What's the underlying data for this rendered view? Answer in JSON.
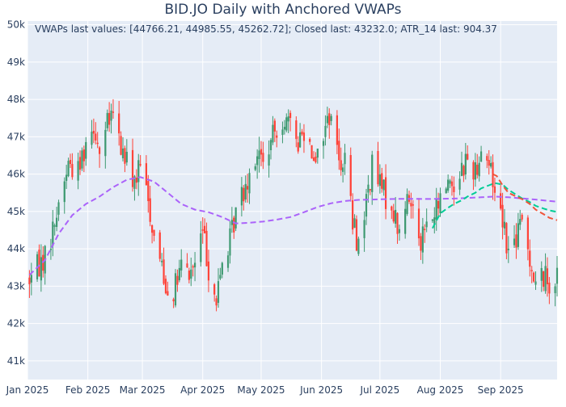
{
  "chart_data": {
    "type": "candlestick",
    "title": "BID.JO Daily with Anchored VWAPs",
    "annotation": "VWAPs last values: [44766.21, 44985.55, 45262.72]; Closed last: 43232.0; ATR_14 last: 904.37",
    "ylim": [
      40500,
      50100
    ],
    "yticks": [
      41000,
      42000,
      43000,
      44000,
      45000,
      46000,
      47000,
      48000,
      49000,
      50000
    ],
    "ytick_labels": [
      "41k",
      "42k",
      "43k",
      "44k",
      "45k",
      "46k",
      "47k",
      "48k",
      "49k",
      "50k"
    ],
    "xlim": [
      "2025-01-01",
      "2025-09-30"
    ],
    "xticks": [
      "2025-01-01",
      "2025-02-01",
      "2025-03-01",
      "2025-04-01",
      "2025-05-01",
      "2025-06-01",
      "2025-07-01",
      "2025-08-01",
      "2025-09-01"
    ],
    "xtick_labels": [
      "Jan 2025",
      "Feb 2025",
      "Mar 2025",
      "Apr 2025",
      "May 2025",
      "Jun 2025",
      "Jul 2025",
      "Aug 2025",
      "Sep 2025"
    ],
    "grid": true,
    "colors": {
      "increasing": "#3D9970",
      "decreasing": "#FF4136",
      "plot_bg": "#E5ECF6",
      "grid": "#ffffff",
      "vwap1": "#AB63FA",
      "vwap2": "#00CC96",
      "vwap3": "#EF553B",
      "text": "#2a3f5f"
    },
    "anchor_points": {
      "price": [
        [
          "2025-01-02",
          43200
        ],
        [
          "2025-01-06",
          43500
        ],
        [
          "2025-01-10",
          43800
        ],
        [
          "2025-01-14",
          44500
        ],
        [
          "2025-01-17",
          45200
        ],
        [
          "2025-01-22",
          46300
        ],
        [
          "2025-01-27",
          46100
        ],
        [
          "2025-01-31",
          46900
        ],
        [
          "2025-02-04",
          47400
        ],
        [
          "2025-02-07",
          46600
        ],
        [
          "2025-02-11",
          47300
        ],
        [
          "2025-02-14",
          47600
        ],
        [
          "2025-02-18",
          46700
        ],
        [
          "2025-02-21",
          46300
        ],
        [
          "2025-02-25",
          45800
        ],
        [
          "2025-02-28",
          46200
        ],
        [
          "2025-03-04",
          45300
        ],
        [
          "2025-03-07",
          44300
        ],
        [
          "2025-03-11",
          43600
        ],
        [
          "2025-03-14",
          42800
        ],
        [
          "2025-03-18",
          43000
        ],
        [
          "2025-03-21",
          43500
        ],
        [
          "2025-03-25",
          43300
        ],
        [
          "2025-03-28",
          43600
        ],
        [
          "2025-04-01",
          44500
        ],
        [
          "2025-04-04",
          43500
        ],
        [
          "2025-04-08",
          42600
        ],
        [
          "2025-04-11",
          43600
        ],
        [
          "2025-04-15",
          44200
        ],
        [
          "2025-04-18",
          45000
        ],
        [
          "2025-04-22",
          45600
        ],
        [
          "2025-04-25",
          46100
        ],
        [
          "2025-04-29",
          46600
        ],
        [
          "2025-05-02",
          46300
        ],
        [
          "2025-05-06",
          46800
        ],
        [
          "2025-05-09",
          47300
        ],
        [
          "2025-05-13",
          47500
        ],
        [
          "2025-05-16",
          47200
        ],
        [
          "2025-05-20",
          46900
        ],
        [
          "2025-05-23",
          47200
        ],
        [
          "2025-05-27",
          46700
        ],
        [
          "2025-05-30",
          46500
        ],
        [
          "2025-06-03",
          47300
        ],
        [
          "2025-06-06",
          47700
        ],
        [
          "2025-06-10",
          46300
        ],
        [
          "2025-06-13",
          46500
        ],
        [
          "2025-06-17",
          44700
        ],
        [
          "2025-06-20",
          44100
        ],
        [
          "2025-06-24",
          45300
        ],
        [
          "2025-06-27",
          46200
        ],
        [
          "2025-07-01",
          45700
        ],
        [
          "2025-07-04",
          45400
        ],
        [
          "2025-07-08",
          45000
        ],
        [
          "2025-07-11",
          44400
        ],
        [
          "2025-07-15",
          45300
        ],
        [
          "2025-07-18",
          45200
        ],
        [
          "2025-07-22",
          44300
        ],
        [
          "2025-07-25",
          44600
        ],
        [
          "2025-07-29",
          44900
        ],
        [
          "2025-08-01",
          45300
        ],
        [
          "2025-08-05",
          45900
        ],
        [
          "2025-08-08",
          45700
        ],
        [
          "2025-08-12",
          46200
        ],
        [
          "2025-08-15",
          46400
        ],
        [
          "2025-08-19",
          46100
        ],
        [
          "2025-08-22",
          46700
        ],
        [
          "2025-08-26",
          46300
        ],
        [
          "2025-08-29",
          45600
        ],
        [
          "2025-09-02",
          44900
        ],
        [
          "2025-09-05",
          43900
        ],
        [
          "2025-09-09",
          44300
        ],
        [
          "2025-09-12",
          44700
        ],
        [
          "2025-09-16",
          43800
        ],
        [
          "2025-09-19",
          43000
        ],
        [
          "2025-09-23",
          43300
        ],
        [
          "2025-09-26",
          43100
        ],
        [
          "2025-09-30",
          43232
        ]
      ]
    },
    "series": [
      {
        "color": "#AB63FA",
        "points": [
          [
            "2025-01-02",
            43300
          ],
          [
            "2025-01-10",
            43700
          ],
          [
            "2025-01-17",
            44400
          ],
          [
            "2025-01-24",
            44900
          ],
          [
            "2025-01-31",
            45200
          ],
          [
            "2025-02-07",
            45400
          ],
          [
            "2025-02-14",
            45650
          ],
          [
            "2025-02-21",
            45850
          ],
          [
            "2025-02-28",
            45920
          ],
          [
            "2025-03-07",
            45800
          ],
          [
            "2025-03-14",
            45500
          ],
          [
            "2025-03-21",
            45200
          ],
          [
            "2025-03-28",
            45050
          ],
          [
            "2025-04-04",
            44980
          ],
          [
            "2025-04-11",
            44850
          ],
          [
            "2025-04-18",
            44680
          ],
          [
            "2025-04-25",
            44700
          ],
          [
            "2025-05-02",
            44730
          ],
          [
            "2025-05-09",
            44780
          ],
          [
            "2025-05-16",
            44850
          ],
          [
            "2025-05-23",
            44980
          ],
          [
            "2025-05-30",
            45120
          ],
          [
            "2025-06-06",
            45220
          ],
          [
            "2025-06-13",
            45280
          ],
          [
            "2025-06-20",
            45310
          ],
          [
            "2025-06-27",
            45320
          ],
          [
            "2025-07-04",
            45330
          ],
          [
            "2025-07-11",
            45340
          ],
          [
            "2025-07-18",
            45340
          ],
          [
            "2025-07-25",
            45335
          ],
          [
            "2025-08-01",
            45340
          ],
          [
            "2025-08-08",
            45345
          ],
          [
            "2025-08-15",
            45360
          ],
          [
            "2025-08-22",
            45380
          ],
          [
            "2025-08-29",
            45400
          ],
          [
            "2025-09-05",
            45380
          ],
          [
            "2025-09-12",
            45350
          ],
          [
            "2025-09-19",
            45320
          ],
          [
            "2025-09-26",
            45280
          ],
          [
            "2025-09-30",
            45262.72
          ]
        ]
      },
      {
        "color": "#00CC96",
        "points": [
          [
            "2025-07-28",
            44550
          ],
          [
            "2025-08-01",
            44950
          ],
          [
            "2025-08-05",
            45100
          ],
          [
            "2025-08-08",
            45200
          ],
          [
            "2025-08-12",
            45300
          ],
          [
            "2025-08-15",
            45400
          ],
          [
            "2025-08-19",
            45500
          ],
          [
            "2025-08-22",
            45620
          ],
          [
            "2025-08-26",
            45700
          ],
          [
            "2025-08-29",
            45760
          ],
          [
            "2025-09-02",
            45720
          ],
          [
            "2025-09-05",
            45580
          ],
          [
            "2025-09-09",
            45450
          ],
          [
            "2025-09-12",
            45350
          ],
          [
            "2025-09-16",
            45250
          ],
          [
            "2025-09-19",
            45150
          ],
          [
            "2025-09-23",
            45080
          ],
          [
            "2025-09-26",
            45030
          ],
          [
            "2025-09-30",
            44985.55
          ]
        ]
      },
      {
        "color": "#EF553B",
        "points": [
          [
            "2025-08-28",
            46000
          ],
          [
            "2025-08-30",
            45950
          ],
          [
            "2025-09-02",
            45700
          ],
          [
            "2025-09-05",
            45500
          ],
          [
            "2025-09-09",
            45400
          ],
          [
            "2025-09-12",
            45330
          ],
          [
            "2025-09-16",
            45200
          ],
          [
            "2025-09-19",
            45050
          ],
          [
            "2025-09-23",
            44930
          ],
          [
            "2025-09-26",
            44830
          ],
          [
            "2025-09-30",
            44766.21
          ]
        ]
      }
    ]
  }
}
